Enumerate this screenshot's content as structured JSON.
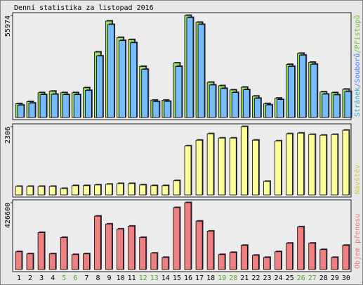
{
  "chart_data": [
    {
      "type": "bar",
      "title": "Denní statistika za listopad 2016",
      "ylim": [
        0,
        55974
      ],
      "yticks": [
        55974
      ],
      "label_parts": [
        {
          "text": "Stránek",
          "color": "#22aacc"
        },
        {
          "text": "/Souborů",
          "color": "#3377ff"
        },
        {
          "text": "/Přístupů",
          "color": "#66bb22"
        }
      ],
      "series": [
        {
          "name": "Přístupů",
          "color": "#99dd66",
          "values": [
            7560,
            8700,
            13600,
            14400,
            13600,
            13600,
            16300,
            35900,
            52900,
            43900,
            42700,
            28000,
            9500,
            9500,
            29900,
            55974,
            52200,
            19300,
            17400,
            15100,
            16600,
            11700,
            7600,
            10600,
            29100,
            35200,
            30300,
            14000,
            13600,
            15500
          ]
        },
        {
          "name": "Souborů",
          "color": "#77bbff",
          "values": [
            6800,
            7900,
            12500,
            12700,
            12500,
            12500,
            14800,
            33700,
            51000,
            42200,
            41000,
            26400,
            8700,
            8800,
            28000,
            54800,
            51000,
            17800,
            15900,
            13700,
            15200,
            10500,
            6900,
            9800,
            28000,
            34200,
            29200,
            12800,
            12400,
            14200
          ]
        }
      ]
    },
    {
      "type": "bar",
      "ylim": [
        0,
        2306
      ],
      "yticks": [
        2306
      ],
      "label_parts": [
        {
          "text": "Návštěv",
          "color": "#cccc44"
        }
      ],
      "series": [
        {
          "name": "Návštěv",
          "color": "#ffff99",
          "values": [
            288,
            288,
            288,
            288,
            216,
            312,
            312,
            336,
            360,
            384,
            384,
            336,
            312,
            312,
            480,
            1656,
            1848,
            2064,
            1920,
            1920,
            2306,
            1848,
            456,
            1824,
            2064,
            2088,
            2040,
            2016,
            2040,
            2184
          ]
        }
      ]
    },
    {
      "type": "bar",
      "ylim": [
        0,
        426600
      ],
      "yticks": [
        426600
      ],
      "label_parts": [
        {
          "text": "Objem přenosu",
          "color": "#ee7777"
        }
      ],
      "series": [
        {
          "name": "Objem přenosu",
          "color": "#f08080",
          "values": [
            113450,
            99800,
            236000,
            99800,
            204200,
            95300,
            99800,
            340400,
            290400,
            258700,
            276800,
            204200,
            104400,
            77100,
            394800,
            426600,
            308600,
            245100,
            95300,
            108900,
            154300,
            90800,
            77100,
            113500,
            167900,
            272300,
            167900,
            127100,
            77100,
            154300
          ]
        }
      ],
      "categories": [
        "1",
        "2",
        "3",
        "4",
        "5",
        "6",
        "7",
        "8",
        "9",
        "10",
        "11",
        "12",
        "13",
        "14",
        "15",
        "16",
        "17",
        "18",
        "19",
        "20",
        "21",
        "22",
        "23",
        "24",
        "25",
        "26",
        "27",
        "28",
        "29",
        "30"
      ],
      "category_colors": [
        "#000",
        "#000",
        "#000",
        "#000",
        "#55aa22",
        "#55aa22",
        "#000",
        "#000",
        "#000",
        "#000",
        "#000",
        "#55aa22",
        "#55aa22",
        "#000",
        "#000",
        "#000",
        "#000",
        "#000",
        "#55aa22",
        "#55aa22",
        "#000",
        "#000",
        "#000",
        "#000",
        "#000",
        "#55aa22",
        "#55aa22",
        "#000",
        "#000",
        "#000"
      ]
    }
  ]
}
